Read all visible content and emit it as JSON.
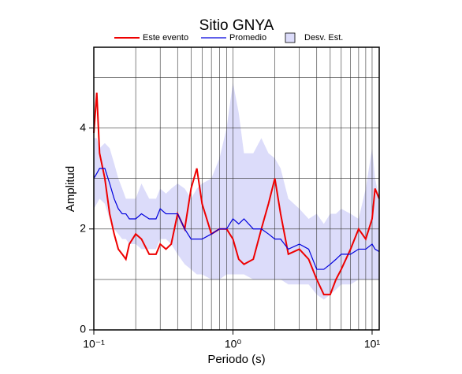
{
  "chart_data": {
    "type": "line",
    "title": "Sitio GNYA",
    "x_label": "Periodo (s)",
    "y_label": "Amplitud",
    "x_scale": "log",
    "grid": true,
    "xlim": [
      0.1,
      11.25
    ],
    "ylim": [
      0,
      5.6
    ],
    "xticks": [
      {
        "value": 0.1,
        "label": "10⁻¹"
      },
      {
        "value": 1,
        "label": "10⁰"
      },
      {
        "value": 10,
        "label": "10¹"
      }
    ],
    "xminorticks": [
      0.2,
      0.3,
      0.4,
      0.5,
      0.6,
      0.7,
      0.8,
      0.9,
      2,
      3,
      4,
      5,
      6,
      7,
      8,
      9
    ],
    "yticks": [
      0,
      2,
      4
    ],
    "yminorticks": [
      1,
      3,
      5
    ],
    "x": [
      0.1,
      0.105,
      0.11,
      0.12,
      0.13,
      0.14,
      0.15,
      0.16,
      0.17,
      0.18,
      0.2,
      0.22,
      0.25,
      0.28,
      0.3,
      0.33,
      0.36,
      0.4,
      0.45,
      0.5,
      0.55,
      0.6,
      0.7,
      0.8,
      0.9,
      1.0,
      1.1,
      1.2,
      1.4,
      1.6,
      1.8,
      2.0,
      2.2,
      2.5,
      3.0,
      3.5,
      4.0,
      4.5,
      5.0,
      5.5,
      6,
      7,
      8,
      9,
      10,
      10.5,
      11.25
    ],
    "band": {
      "name": "Desv. Est.",
      "color": "#dcdcfa",
      "upper": [
        3.8,
        3.8,
        3.6,
        3.7,
        3.6,
        3.3,
        3.0,
        2.8,
        2.6,
        2.6,
        2.6,
        2.9,
        2.6,
        2.6,
        2.8,
        2.7,
        2.8,
        2.9,
        2.8,
        2.6,
        2.8,
        2.9,
        3.0,
        3.4,
        4.0,
        4.9,
        4.3,
        3.5,
        3.5,
        3.8,
        3.5,
        3.4,
        3.2,
        2.6,
        2.4,
        2.2,
        2.3,
        2.1,
        2.3,
        2.3,
        2.4,
        2.3,
        2.2,
        2.8,
        3.6,
        3.0,
        2.6
      ],
      "lower": [
        2.4,
        2.5,
        2.6,
        2.5,
        2.2,
        2.0,
        1.9,
        1.8,
        1.8,
        1.7,
        1.7,
        1.6,
        1.6,
        1.6,
        1.8,
        1.8,
        1.7,
        1.5,
        1.3,
        1.2,
        1.1,
        1.1,
        1.0,
        1.0,
        1.1,
        1.1,
        1.1,
        1.1,
        1.0,
        1.0,
        1.0,
        1.0,
        1.0,
        0.9,
        0.9,
        0.9,
        0.7,
        0.6,
        0.7,
        0.8,
        0.9,
        0.9,
        1.0,
        1.0,
        1.0,
        1.0,
        1.0
      ]
    },
    "series": [
      {
        "name": "Este evento",
        "color": "#ee0000",
        "width": 2,
        "values": [
          3.9,
          4.7,
          3.5,
          3.0,
          2.3,
          1.9,
          1.6,
          1.5,
          1.4,
          1.7,
          1.9,
          1.8,
          1.5,
          1.5,
          1.7,
          1.6,
          1.7,
          2.3,
          2.0,
          2.8,
          3.2,
          2.5,
          1.9,
          2.0,
          2.0,
          1.8,
          1.4,
          1.3,
          1.4,
          2.0,
          2.5,
          3.0,
          2.3,
          1.5,
          1.6,
          1.4,
          1.0,
          0.7,
          0.7,
          1.0,
          1.2,
          1.6,
          2.0,
          1.8,
          2.2,
          2.8,
          2.6
        ]
      },
      {
        "name": "Promedio",
        "color": "#0000dd",
        "width": 1.2,
        "values": [
          3.0,
          3.1,
          3.2,
          3.2,
          2.9,
          2.6,
          2.4,
          2.3,
          2.3,
          2.2,
          2.2,
          2.3,
          2.2,
          2.2,
          2.4,
          2.3,
          2.3,
          2.3,
          2.0,
          1.8,
          1.8,
          1.8,
          1.9,
          2.0,
          2.0,
          2.2,
          2.1,
          2.2,
          2.0,
          2.0,
          1.9,
          1.8,
          1.8,
          1.6,
          1.7,
          1.6,
          1.2,
          1.2,
          1.3,
          1.4,
          1.5,
          1.5,
          1.6,
          1.6,
          1.7,
          1.6,
          1.55
        ]
      }
    ]
  }
}
